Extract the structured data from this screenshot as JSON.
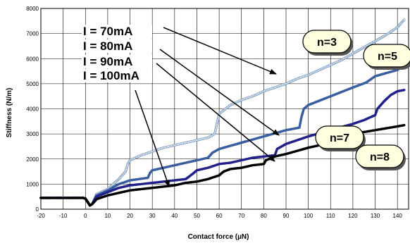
{
  "chart_data": {
    "type": "scatter",
    "xlabel": "Contact force (µN)",
    "ylabel": "Stiffness (N/m)",
    "xlim": [
      -20,
      145
    ],
    "ylim": [
      0,
      8000
    ],
    "x_ticks": [
      -20,
      -10,
      0,
      10,
      20,
      30,
      40,
      50,
      60,
      70,
      80,
      90,
      100,
      110,
      120,
      130,
      140
    ],
    "y_ticks": [
      0,
      1000,
      2000,
      3000,
      4000,
      5000,
      6000,
      7000,
      8000
    ],
    "grid": true,
    "series": [
      {
        "name": "I = 70mA",
        "color": "#6a8fb8",
        "fill": "#ffffff",
        "points": [
          [
            -20,
            450
          ],
          [
            -15,
            450
          ],
          [
            -10,
            450
          ],
          [
            -5,
            450
          ],
          [
            -1,
            450
          ],
          [
            0,
            430
          ],
          [
            1,
            300
          ],
          [
            2,
            150
          ],
          [
            3,
            200
          ],
          [
            5,
            600
          ],
          [
            10,
            800
          ],
          [
            15,
            1200
          ],
          [
            18,
            1500
          ],
          [
            19,
            1800
          ],
          [
            20,
            1950
          ],
          [
            25,
            2150
          ],
          [
            30,
            2300
          ],
          [
            35,
            2450
          ],
          [
            40,
            2550
          ],
          [
            45,
            2650
          ],
          [
            50,
            2750
          ],
          [
            55,
            2850
          ],
          [
            58,
            3000
          ],
          [
            59,
            3400
          ],
          [
            60,
            3800
          ],
          [
            65,
            4150
          ],
          [
            70,
            4350
          ],
          [
            75,
            4500
          ],
          [
            80,
            4700
          ],
          [
            85,
            4850
          ],
          [
            90,
            5000
          ],
          [
            95,
            5200
          ],
          [
            100,
            5350
          ],
          [
            105,
            5550
          ],
          [
            110,
            5750
          ],
          [
            115,
            5950
          ],
          [
            120,
            6200
          ],
          [
            125,
            6450
          ],
          [
            130,
            6700
          ],
          [
            135,
            6950
          ],
          [
            140,
            7250
          ],
          [
            143,
            7550
          ]
        ]
      },
      {
        "name": "I = 80mA",
        "color": "#3a5fa0",
        "fill": "#3a5fa0",
        "points": [
          [
            -20,
            450
          ],
          [
            -10,
            450
          ],
          [
            -1,
            450
          ],
          [
            0,
            420
          ],
          [
            2,
            150
          ],
          [
            3,
            200
          ],
          [
            5,
            550
          ],
          [
            10,
            750
          ],
          [
            15,
            1000
          ],
          [
            20,
            1150
          ],
          [
            28,
            1250
          ],
          [
            29,
            1450
          ],
          [
            30,
            1550
          ],
          [
            40,
            1750
          ],
          [
            50,
            1950
          ],
          [
            55,
            2050
          ],
          [
            57,
            2250
          ],
          [
            60,
            2400
          ],
          [
            70,
            2650
          ],
          [
            80,
            2900
          ],
          [
            90,
            3150
          ],
          [
            96,
            3250
          ],
          [
            97,
            3700
          ],
          [
            98,
            4000
          ],
          [
            100,
            4150
          ],
          [
            110,
            4500
          ],
          [
            120,
            4850
          ],
          [
            126,
            5050
          ],
          [
            130,
            5300
          ],
          [
            140,
            5550
          ],
          [
            143,
            5750
          ]
        ]
      },
      {
        "name": "I = 90mA",
        "color": "#22228a",
        "fill": "#22228a",
        "points": [
          [
            -20,
            450
          ],
          [
            -10,
            450
          ],
          [
            -1,
            450
          ],
          [
            0,
            420
          ],
          [
            2,
            150
          ],
          [
            3,
            200
          ],
          [
            5,
            500
          ],
          [
            10,
            680
          ],
          [
            15,
            850
          ],
          [
            20,
            950
          ],
          [
            30,
            1050
          ],
          [
            40,
            1150
          ],
          [
            45,
            1200
          ],
          [
            48,
            1400
          ],
          [
            50,
            1550
          ],
          [
            55,
            1650
          ],
          [
            60,
            1800
          ],
          [
            65,
            1850
          ],
          [
            70,
            1950
          ],
          [
            75,
            2050
          ],
          [
            80,
            2100
          ],
          [
            85,
            2150
          ],
          [
            86,
            2400
          ],
          [
            90,
            2600
          ],
          [
            95,
            2750
          ],
          [
            100,
            2900
          ],
          [
            110,
            3150
          ],
          [
            120,
            3400
          ],
          [
            125,
            3550
          ],
          [
            130,
            3750
          ],
          [
            131,
            4000
          ],
          [
            134,
            4300
          ],
          [
            137,
            4550
          ],
          [
            140,
            4700
          ],
          [
            143,
            4750
          ]
        ]
      },
      {
        "name": "I = 100mA",
        "color": "#000000",
        "fill": "#000000",
        "points": [
          [
            -20,
            450
          ],
          [
            -10,
            450
          ],
          [
            -1,
            450
          ],
          [
            0,
            420
          ],
          [
            2,
            150
          ],
          [
            3,
            200
          ],
          [
            5,
            400
          ],
          [
            10,
            550
          ],
          [
            15,
            650
          ],
          [
            20,
            750
          ],
          [
            30,
            850
          ],
          [
            40,
            950
          ],
          [
            45,
            1050
          ],
          [
            50,
            1100
          ],
          [
            55,
            1200
          ],
          [
            60,
            1350
          ],
          [
            62,
            1500
          ],
          [
            65,
            1600
          ],
          [
            70,
            1650
          ],
          [
            75,
            1750
          ],
          [
            80,
            1800
          ],
          [
            81,
            1950
          ],
          [
            85,
            2100
          ],
          [
            90,
            2200
          ],
          [
            100,
            2450
          ],
          [
            110,
            2650
          ],
          [
            115,
            2700
          ],
          [
            117,
            2900
          ],
          [
            120,
            3000
          ],
          [
            130,
            3150
          ],
          [
            140,
            3300
          ],
          [
            143,
            3350
          ]
        ]
      }
    ],
    "annotations": {
      "current_labels": [
        "I = 70mA",
        "I = 80mA",
        "I = 90mA",
        "I = 100mA"
      ],
      "n_labels": [
        "n=3",
        "n=5",
        "n=7",
        "n=8"
      ]
    }
  }
}
